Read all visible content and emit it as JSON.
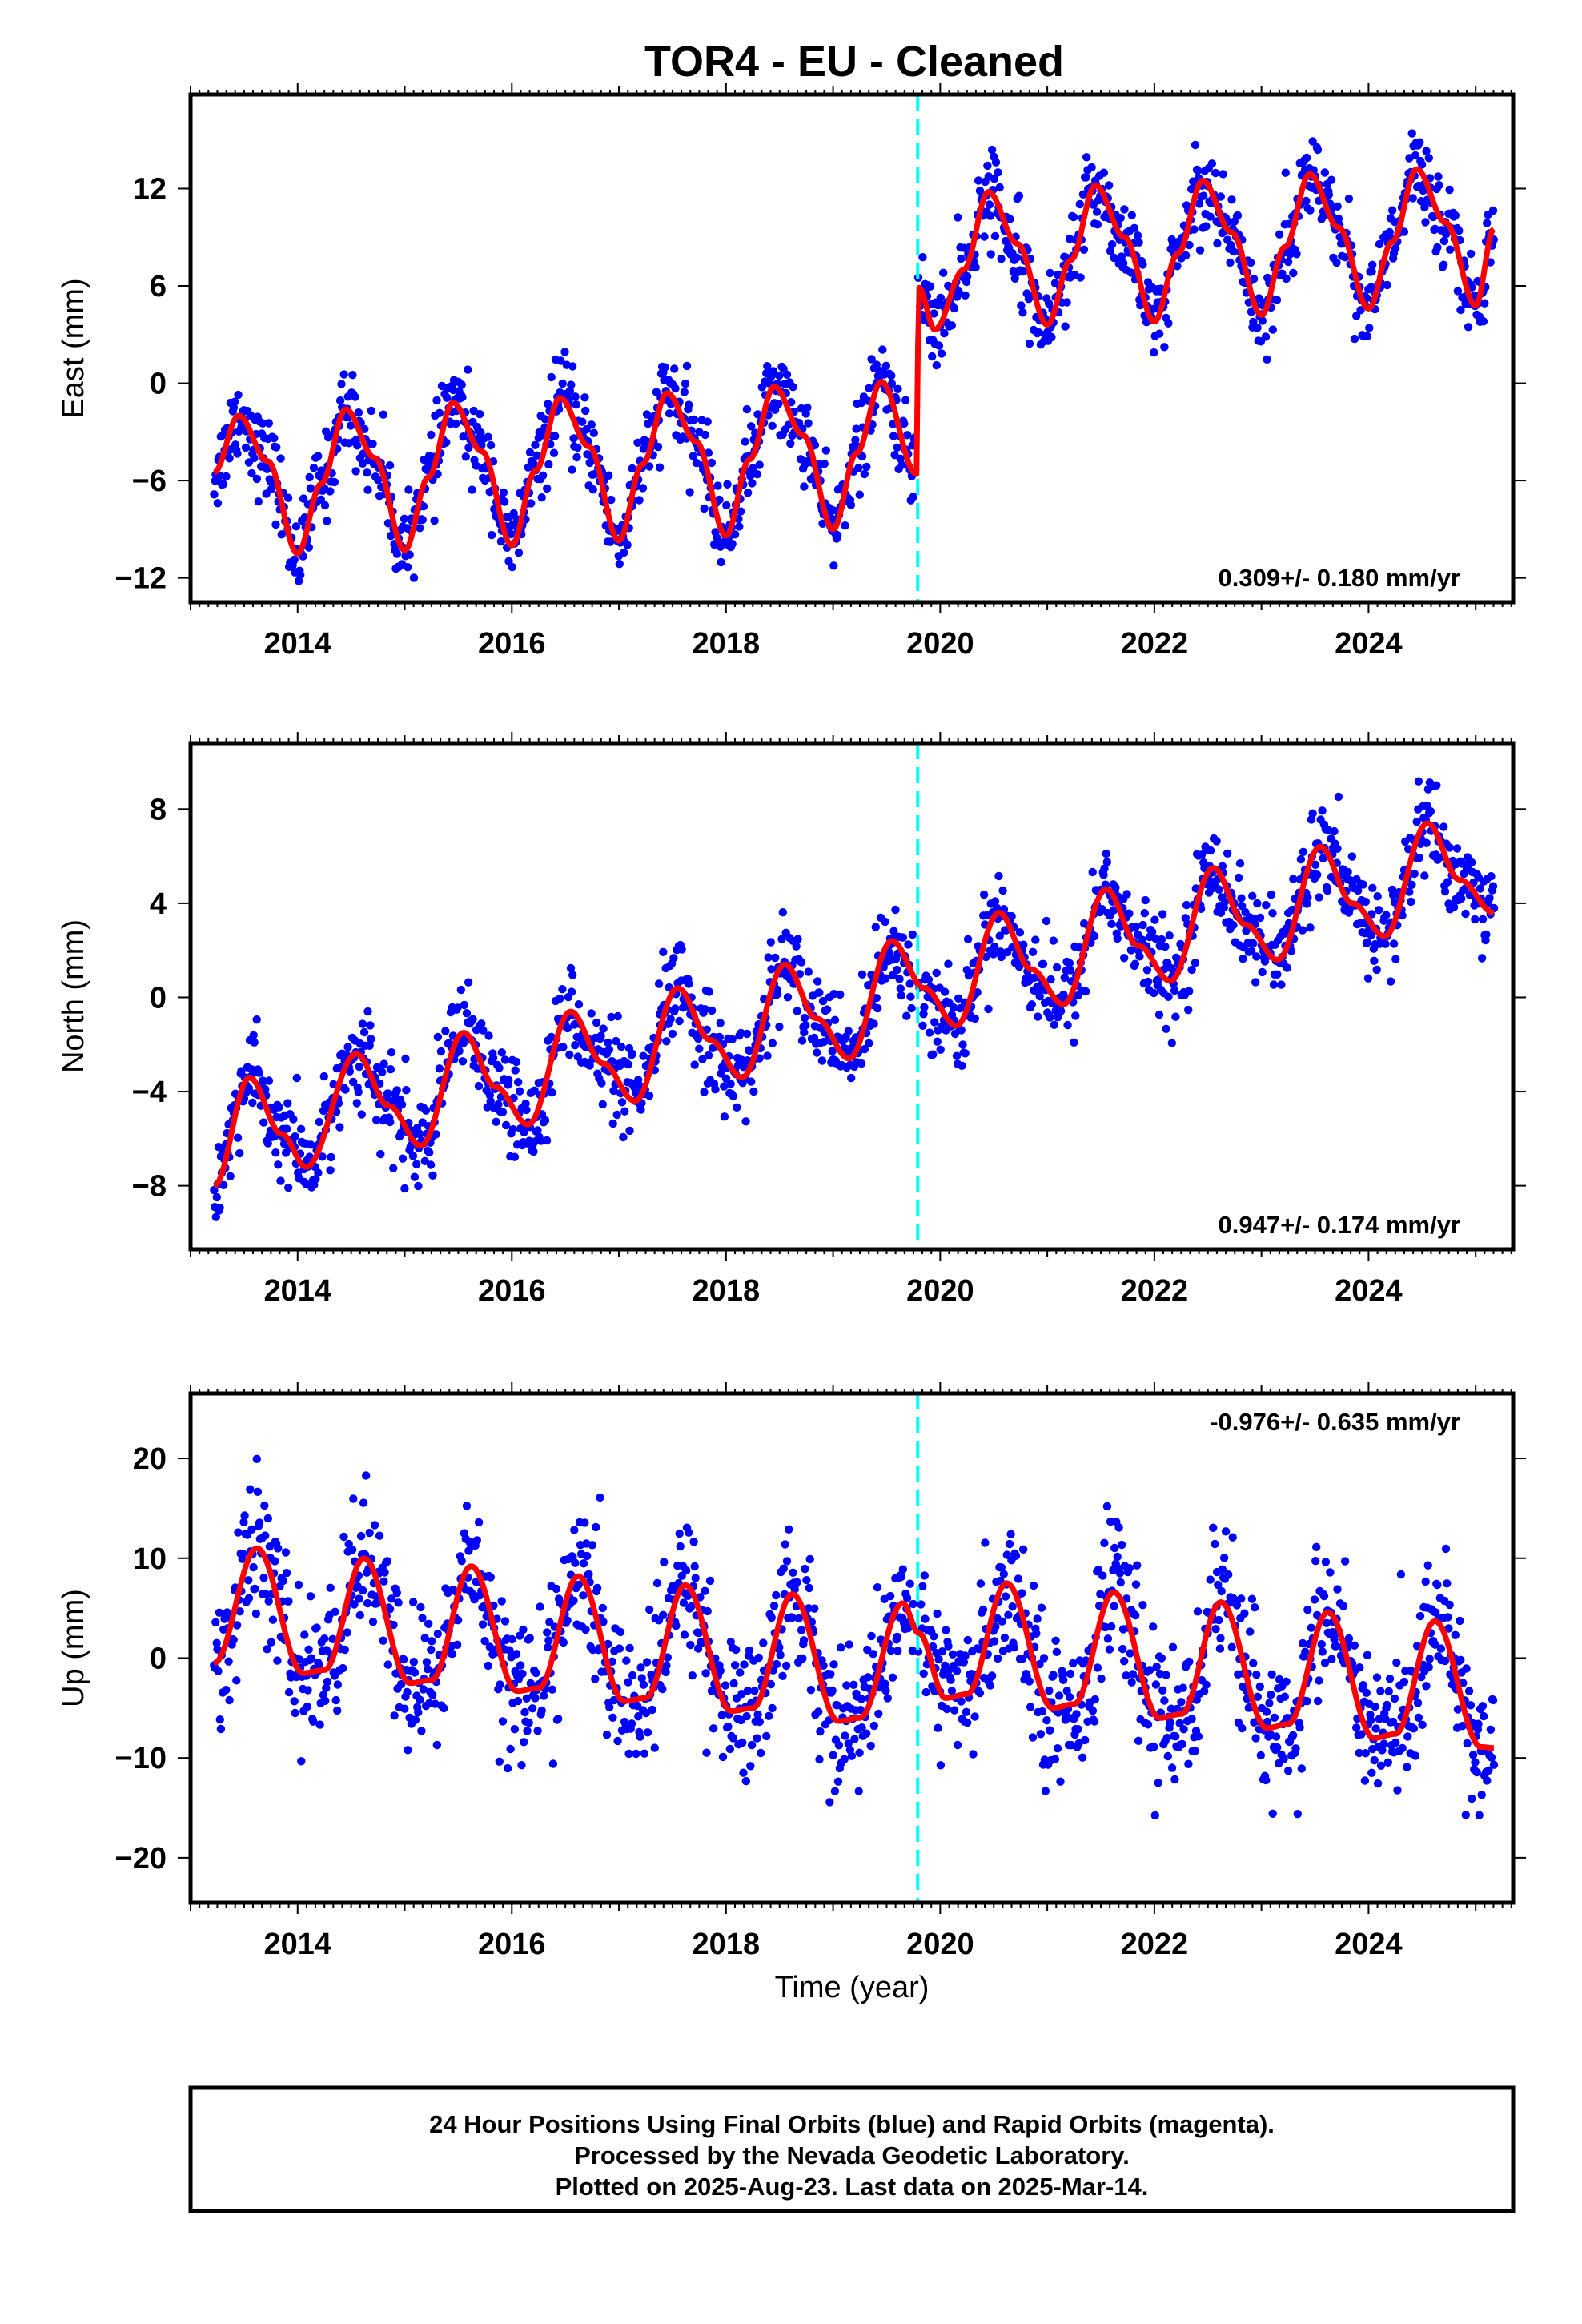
{
  "title": "TOR4  - EU - Cleaned",
  "footer": {
    "line1": "24 Hour Positions Using Final Orbits (blue) and Rapid Orbits (magenta).",
    "line2": "Processed by the Nevada Geodetic Laboratory.",
    "line3": "Plotted on 2025-Aug-23. Last data on 2025-Mar-14."
  },
  "colors": {
    "final_orbits": "#0000ff",
    "model_fit": "#ff0000",
    "offset_marker": "#00ffff"
  },
  "chart_data": [
    {
      "type": "scatter",
      "component": "east",
      "ylabel": "East (mm)",
      "xlabel": "",
      "xlim": [
        2013.0,
        2025.35
      ],
      "ylim": [
        -13.5,
        17.8
      ],
      "x_ticks": [
        2014,
        2016,
        2018,
        2020,
        2022,
        2024
      ],
      "y_ticks": [
        -12,
        -6,
        0,
        6,
        12
      ],
      "rate_label": "0.309+/- 0.180 mm/yr",
      "rate_position": "bottom-right",
      "offset_epoch": 2019.79,
      "model": {
        "x": [
          2013.22,
          2013.45,
          2013.72,
          2014.0,
          2014.22,
          2014.45,
          2014.72,
          2015.0,
          2015.22,
          2015.45,
          2015.72,
          2016.0,
          2016.22,
          2016.45,
          2016.72,
          2017.0,
          2017.22,
          2017.45,
          2017.72,
          2018.0,
          2018.22,
          2018.45,
          2018.72,
          2019.0,
          2019.22,
          2019.45,
          2019.78,
          2019.8,
          2019.95,
          2020.22,
          2020.45,
          2020.72,
          2021.0,
          2021.22,
          2021.45,
          2021.72,
          2022.0,
          2022.22,
          2022.45,
          2022.72,
          2023.0,
          2023.22,
          2023.45,
          2023.72,
          2024.0,
          2024.22,
          2024.45,
          2024.72,
          2025.0,
          2025.17
        ],
        "y": [
          -5.5,
          -2.0,
          -4.8,
          -10.5,
          -6.2,
          -1.6,
          -4.6,
          -10.3,
          -5.8,
          -1.2,
          -4.2,
          -10.0,
          -5.4,
          -0.9,
          -3.9,
          -9.7,
          -5.0,
          -0.6,
          -3.6,
          -9.4,
          -4.7,
          -0.2,
          -3.2,
          -9.0,
          -4.3,
          0.1,
          -5.6,
          5.9,
          3.3,
          7.0,
          11.8,
          8.6,
          3.6,
          7.6,
          12.2,
          9.0,
          3.8,
          8.0,
          12.5,
          9.3,
          4.2,
          8.4,
          12.9,
          9.6,
          4.6,
          8.7,
          13.2,
          9.9,
          4.8,
          9.5
        ]
      },
      "scatter_note": "daily positions scatter ±~2.5 mm around the model"
    },
    {
      "type": "scatter",
      "component": "north",
      "ylabel": "North (mm)",
      "xlabel": "",
      "xlim": [
        2013.0,
        2025.35
      ],
      "ylim": [
        -10.7,
        10.8
      ],
      "x_ticks": [
        2014,
        2016,
        2018,
        2020,
        2022,
        2024
      ],
      "y_ticks": [
        -8,
        -4,
        0,
        4,
        8
      ],
      "rate_label": "0.947+/- 0.174 mm/yr",
      "rate_position": "bottom-right",
      "offset_epoch": 2019.79,
      "model": {
        "x": [
          2013.22,
          2013.55,
          2013.85,
          2014.08,
          2014.55,
          2014.85,
          2015.15,
          2015.55,
          2015.85,
          2016.15,
          2016.55,
          2016.85,
          2017.15,
          2017.55,
          2017.85,
          2018.15,
          2018.55,
          2018.85,
          2019.15,
          2019.55,
          2019.85,
          2020.15,
          2020.55,
          2020.85,
          2021.15,
          2021.55,
          2021.85,
          2022.15,
          2022.55,
          2022.85,
          2023.15,
          2023.55,
          2023.85,
          2024.15,
          2024.55,
          2024.85,
          2025.17
        ],
        "y": [
          -8.0,
          -3.4,
          -5.8,
          -7.2,
          -2.4,
          -4.6,
          -6.3,
          -1.5,
          -3.8,
          -5.4,
          -0.6,
          -2.8,
          -4.4,
          0.4,
          -1.8,
          -3.4,
          1.4,
          -0.9,
          -2.6,
          2.4,
          0.4,
          -1.2,
          3.6,
          1.2,
          -0.3,
          4.6,
          2.2,
          0.7,
          5.5,
          3.1,
          1.6,
          6.4,
          4.0,
          2.6,
          7.4,
          5.0,
          3.6
        ]
      },
      "scatter_note": "daily positions scatter ±~1.5 mm around the model"
    },
    {
      "type": "scatter",
      "component": "up",
      "ylabel": "Up (mm)",
      "xlabel": "Time (year)",
      "xlim": [
        2013.0,
        2025.35
      ],
      "ylim": [
        -24.5,
        26.5
      ],
      "x_ticks": [
        2014,
        2016,
        2018,
        2020,
        2022,
        2024
      ],
      "y_ticks": [
        -20,
        -10,
        0,
        10,
        20
      ],
      "rate_label": "-0.976+/- 0.635 mm/yr",
      "rate_position": "top-right",
      "offset_epoch": 2019.79,
      "model": {
        "x": [
          2013.22,
          2013.62,
          2014.05,
          2014.25,
          2014.62,
          2015.05,
          2015.25,
          2015.62,
          2016.05,
          2016.25,
          2016.62,
          2017.05,
          2017.25,
          2017.62,
          2018.05,
          2018.25,
          2018.62,
          2019.05,
          2019.25,
          2019.65,
          2019.8,
          2020.05,
          2020.25,
          2020.62,
          2021.05,
          2021.25,
          2021.62,
          2022.05,
          2022.25,
          2022.62,
          2023.05,
          2023.25,
          2023.62,
          2024.05,
          2024.25,
          2024.62,
          2025.05,
          2025.17
        ],
        "y": [
          -0.5,
          11.0,
          -1.5,
          -1.2,
          10.0,
          -2.5,
          -2.2,
          9.2,
          -3.3,
          -3.0,
          8.2,
          -4.3,
          -4.0,
          7.3,
          -5.3,
          -5.0,
          6.4,
          -6.3,
          -6.0,
          5.5,
          2.5,
          -4.0,
          -3.6,
          7.5,
          -5.0,
          -4.6,
          6.6,
          -6.0,
          -5.6,
          5.6,
          -7.0,
          -6.6,
          4.6,
          -8.0,
          -7.6,
          3.7,
          -8.9,
          -9.0
        ]
      },
      "scatter_note": "daily positions scatter ±~5 mm around the model"
    }
  ]
}
